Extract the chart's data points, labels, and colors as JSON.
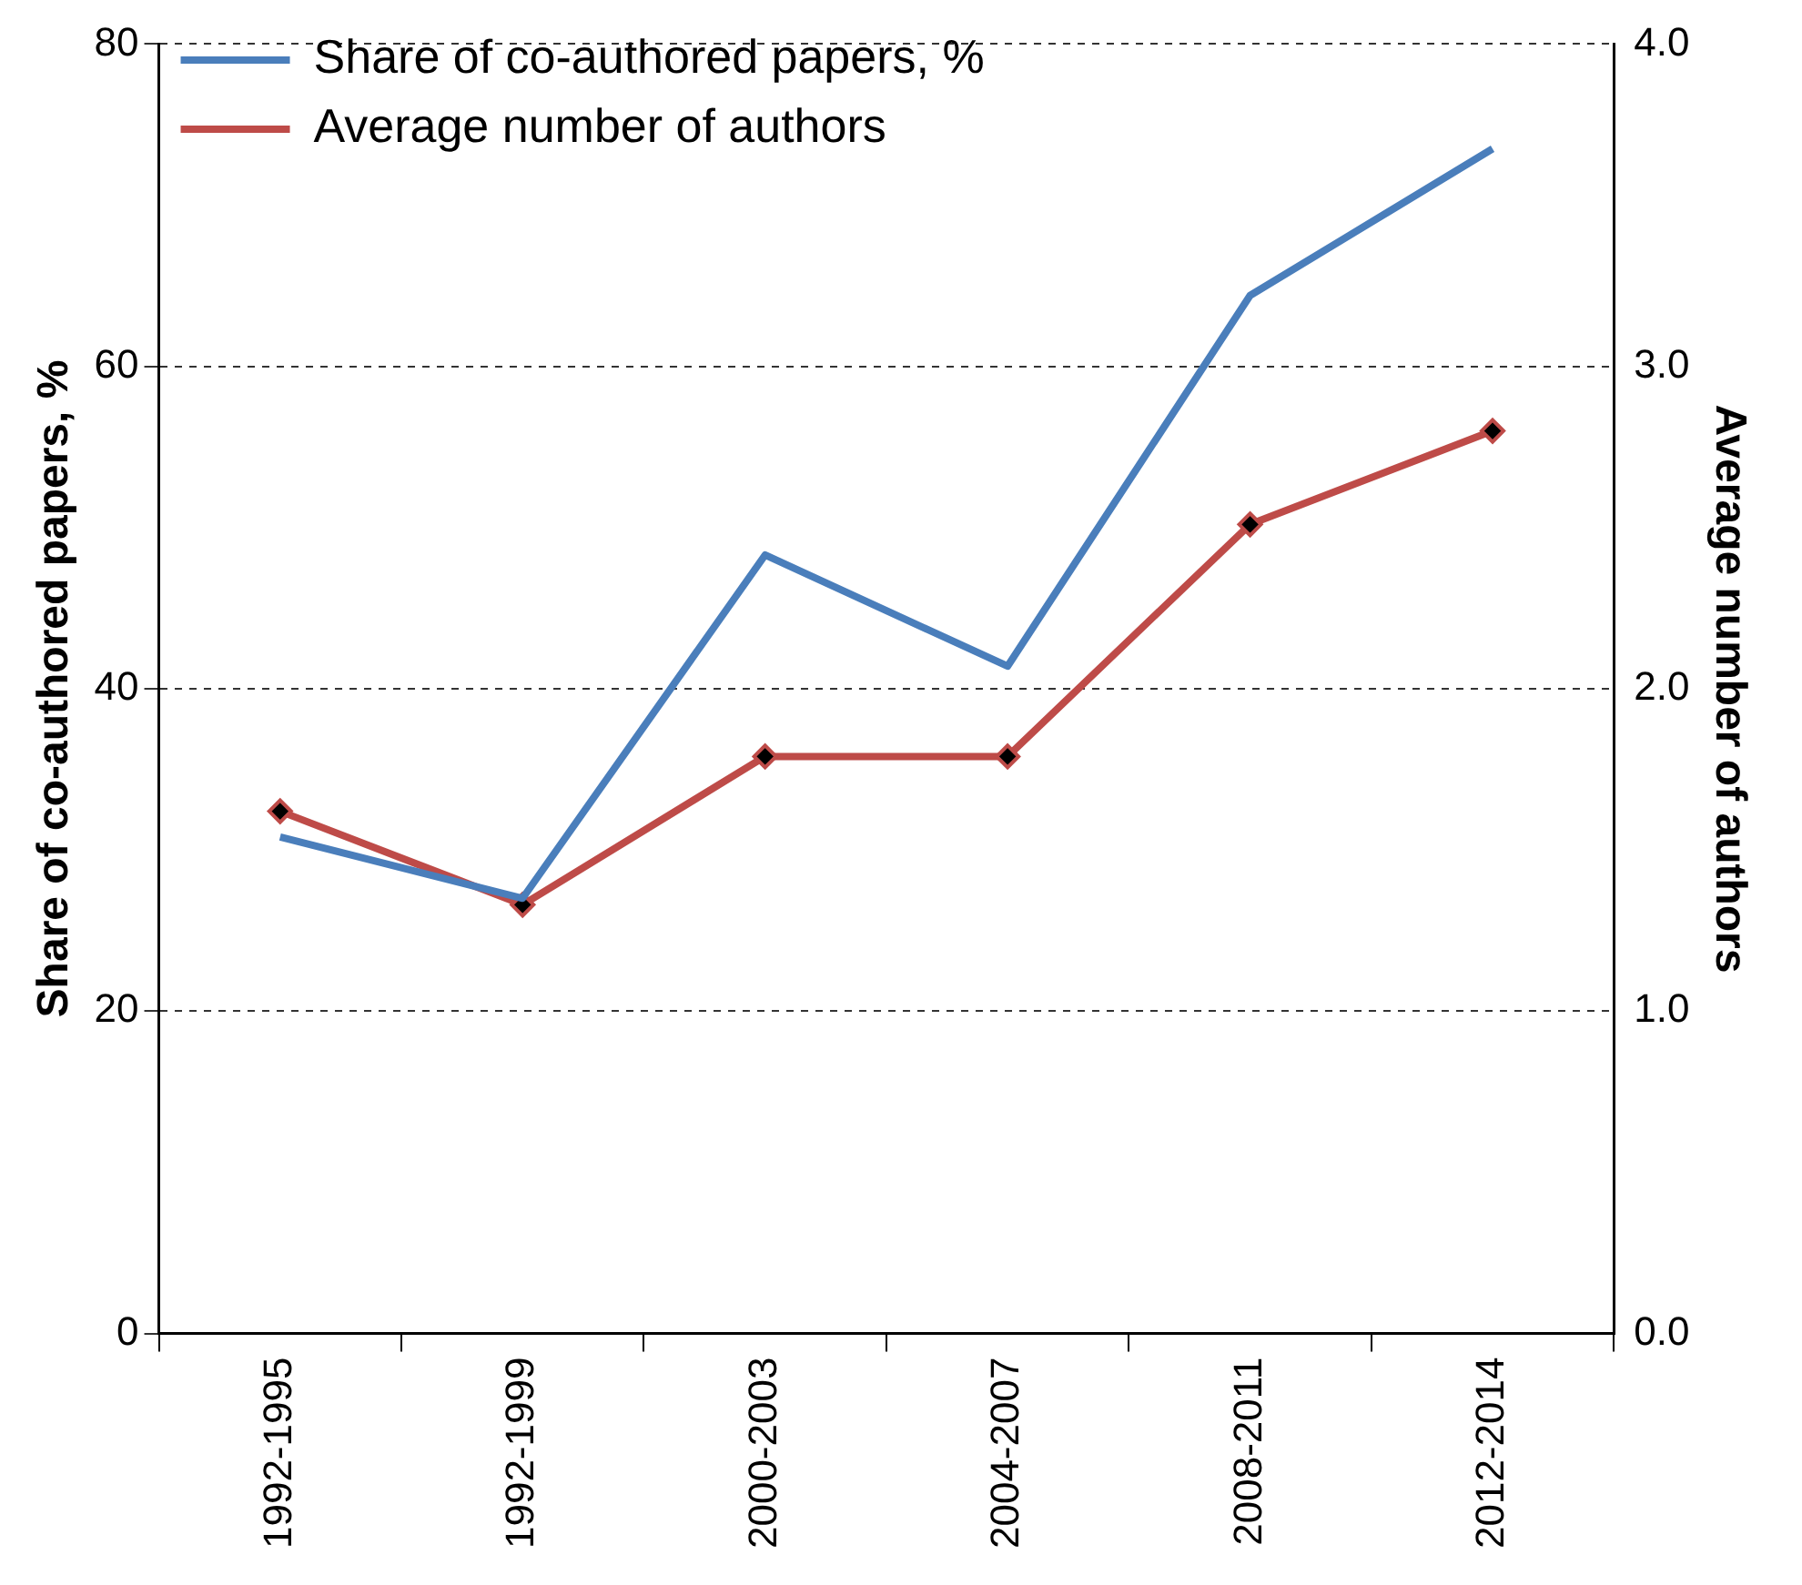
{
  "chart_data": {
    "type": "line",
    "categories": [
      "1992-1995",
      "1992-1999",
      "2000-2003",
      "2004-2007",
      "2008-2011",
      "2012-2014"
    ],
    "series": [
      {
        "name": "Share of co-authored papers, %",
        "color": "#4a7ebb",
        "values": [
          30.8,
          27.0,
          48.3,
          41.4,
          64.4,
          73.5
        ],
        "marker": "none"
      },
      {
        "name": "Average number of authors",
        "color": "#be4b48",
        "values": [
          1.62,
          1.33,
          1.79,
          1.79,
          2.51,
          2.8
        ],
        "axis": "y2",
        "marker": "diamond"
      }
    ],
    "ylabel": "Share of co-authored papers, %",
    "y2label": "Average number of authors",
    "ylim": [
      0,
      80
    ],
    "yticks": [
      0,
      20,
      40,
      60,
      80
    ],
    "y2lim": [
      0,
      4.0
    ],
    "y2ticks": [
      {
        "value": 0,
        "label": "0.0"
      },
      {
        "value": 1,
        "label": "1.0"
      },
      {
        "value": 2,
        "label": "2.0"
      },
      {
        "value": 3,
        "label": "3.0"
      },
      {
        "value": 4,
        "label": "4.0"
      }
    ],
    "grid": "y",
    "line_style": "solid",
    "legend": "top left"
  }
}
